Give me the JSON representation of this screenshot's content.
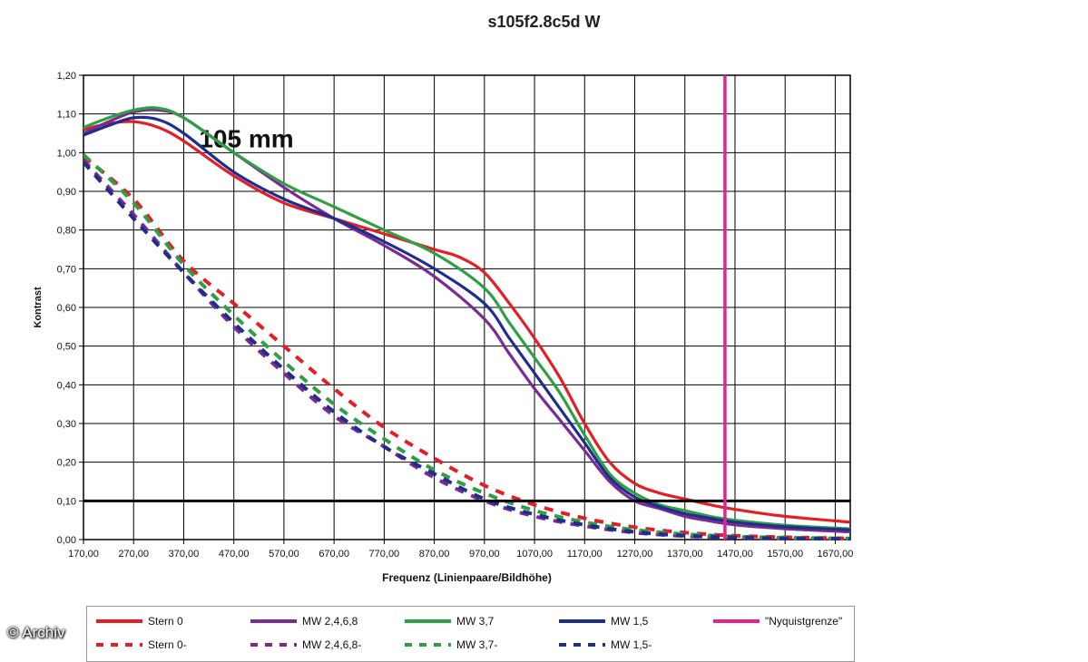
{
  "chart_data": {
    "type": "line",
    "title": "s105f2.8c5d W",
    "annotation": "105 mm",
    "xlabel": "Frequenz (Linienpaare/Bildhöhe)",
    "ylabel": "Kontrast",
    "xlim": [
      170,
      1700
    ],
    "ylim": [
      0,
      1.2
    ],
    "x_ticks": [
      "170,00",
      "270,00",
      "370,00",
      "470,00",
      "570,00",
      "670,00",
      "770,00",
      "870,00",
      "970,00",
      "1070,00",
      "1170,00",
      "1270,00",
      "1370,00",
      "1470,00",
      "1570,00",
      "1670,00"
    ],
    "y_ticks": [
      "0,00",
      "0,10",
      "0,20",
      "0,30",
      "0,40",
      "0,50",
      "0,60",
      "0,70",
      "0,80",
      "0,90",
      "1,00",
      "1,10",
      "1,20"
    ],
    "grid": true,
    "reference_line": {
      "y": 0.1,
      "color": "#000000"
    },
    "nyquist": {
      "x": 1450,
      "label": "\"Nyquistgrenze\"",
      "color": "#e0238f"
    },
    "series": [
      {
        "name": "Stern 0",
        "color": "#e31e24",
        "dash": false,
        "x": [
          170,
          220,
          270,
          320,
          370,
          470,
          570,
          670,
          770,
          870,
          920,
          970,
          1020,
          1070,
          1120,
          1170,
          1220,
          1270,
          1320,
          1370,
          1420,
          1470,
          1570,
          1700
        ],
        "y": [
          1.06,
          1.075,
          1.08,
          1.065,
          1.03,
          0.94,
          0.87,
          0.83,
          0.79,
          0.75,
          0.73,
          0.69,
          0.61,
          0.52,
          0.42,
          0.3,
          0.2,
          0.145,
          0.12,
          0.105,
          0.09,
          0.078,
          0.06,
          0.045
        ]
      },
      {
        "name": "MW 2,4,6,8",
        "color": "#7b2a92",
        "dash": false,
        "x": [
          170,
          220,
          270,
          320,
          370,
          470,
          570,
          670,
          770,
          870,
          970,
          1020,
          1070,
          1120,
          1170,
          1220,
          1270,
          1320,
          1370,
          1420,
          1470,
          1570,
          1700
        ],
        "y": [
          1.05,
          1.08,
          1.105,
          1.11,
          1.09,
          1.0,
          0.91,
          0.83,
          0.76,
          0.68,
          0.57,
          0.48,
          0.39,
          0.31,
          0.23,
          0.15,
          0.1,
          0.08,
          0.06,
          0.048,
          0.038,
          0.028,
          0.02
        ]
      },
      {
        "name": "MW 3,7",
        "color": "#2ea043",
        "dash": false,
        "x": [
          170,
          220,
          270,
          320,
          370,
          470,
          570,
          670,
          770,
          870,
          970,
          1020,
          1070,
          1120,
          1170,
          1220,
          1270,
          1320,
          1370,
          1420,
          1470,
          1570,
          1700
        ],
        "y": [
          1.065,
          1.09,
          1.11,
          1.115,
          1.09,
          1.0,
          0.92,
          0.86,
          0.8,
          0.74,
          0.65,
          0.56,
          0.47,
          0.38,
          0.27,
          0.17,
          0.12,
          0.09,
          0.075,
          0.06,
          0.05,
          0.037,
          0.028
        ]
      },
      {
        "name": "MW 1,5",
        "color": "#1f2e8c",
        "dash": false,
        "x": [
          170,
          220,
          270,
          320,
          370,
          470,
          570,
          670,
          770,
          870,
          970,
          1020,
          1070,
          1120,
          1170,
          1220,
          1270,
          1320,
          1370,
          1420,
          1470,
          1570,
          1700
        ],
        "y": [
          1.045,
          1.07,
          1.09,
          1.085,
          1.05,
          0.95,
          0.88,
          0.83,
          0.77,
          0.7,
          0.61,
          0.52,
          0.43,
          0.34,
          0.25,
          0.16,
          0.11,
          0.085,
          0.067,
          0.055,
          0.045,
          0.033,
          0.025
        ]
      },
      {
        "name": "\"Nyquistgrenze\"",
        "color": "#e0238f",
        "dash": false,
        "x": [
          1450,
          1450
        ],
        "y": [
          0,
          1.2
        ]
      },
      {
        "name": "Stern 0-",
        "color": "#e31e24",
        "dash": true,
        "x": [
          170,
          270,
          370,
          470,
          570,
          670,
          770,
          870,
          970,
          1070,
          1170,
          1270,
          1370,
          1470,
          1570,
          1700
        ],
        "y": [
          0.99,
          0.88,
          0.72,
          0.61,
          0.5,
          0.39,
          0.29,
          0.21,
          0.14,
          0.09,
          0.055,
          0.032,
          0.018,
          0.01,
          0.006,
          0.003
        ]
      },
      {
        "name": "MW 2,4,6,8-",
        "color": "#7b2a92",
        "dash": true,
        "x": [
          170,
          270,
          370,
          470,
          570,
          670,
          770,
          870,
          970,
          1070,
          1170,
          1270,
          1370,
          1470,
          1570,
          1700
        ],
        "y": [
          0.98,
          0.84,
          0.69,
          0.55,
          0.43,
          0.32,
          0.24,
          0.16,
          0.1,
          0.06,
          0.035,
          0.018,
          0.009,
          0.005,
          0.003,
          0.002
        ]
      },
      {
        "name": "MW 3,7-",
        "color": "#2ea043",
        "dash": true,
        "x": [
          170,
          270,
          370,
          470,
          570,
          670,
          770,
          870,
          970,
          1070,
          1170,
          1270,
          1370,
          1470,
          1570,
          1700
        ],
        "y": [
          0.995,
          0.87,
          0.71,
          0.58,
          0.46,
          0.35,
          0.26,
          0.18,
          0.12,
          0.075,
          0.045,
          0.025,
          0.014,
          0.008,
          0.005,
          0.003
        ]
      },
      {
        "name": "MW 1,5-",
        "color": "#1f2e8c",
        "dash": true,
        "x": [
          170,
          270,
          370,
          470,
          570,
          670,
          770,
          870,
          970,
          1070,
          1170,
          1270,
          1370,
          1470,
          1570,
          1700
        ],
        "y": [
          0.975,
          0.83,
          0.69,
          0.56,
          0.44,
          0.33,
          0.24,
          0.17,
          0.105,
          0.065,
          0.038,
          0.02,
          0.01,
          0.006,
          0.003,
          0.002
        ]
      }
    ],
    "legend": {
      "placement": "bottom"
    }
  },
  "watermark": "© Archiv"
}
